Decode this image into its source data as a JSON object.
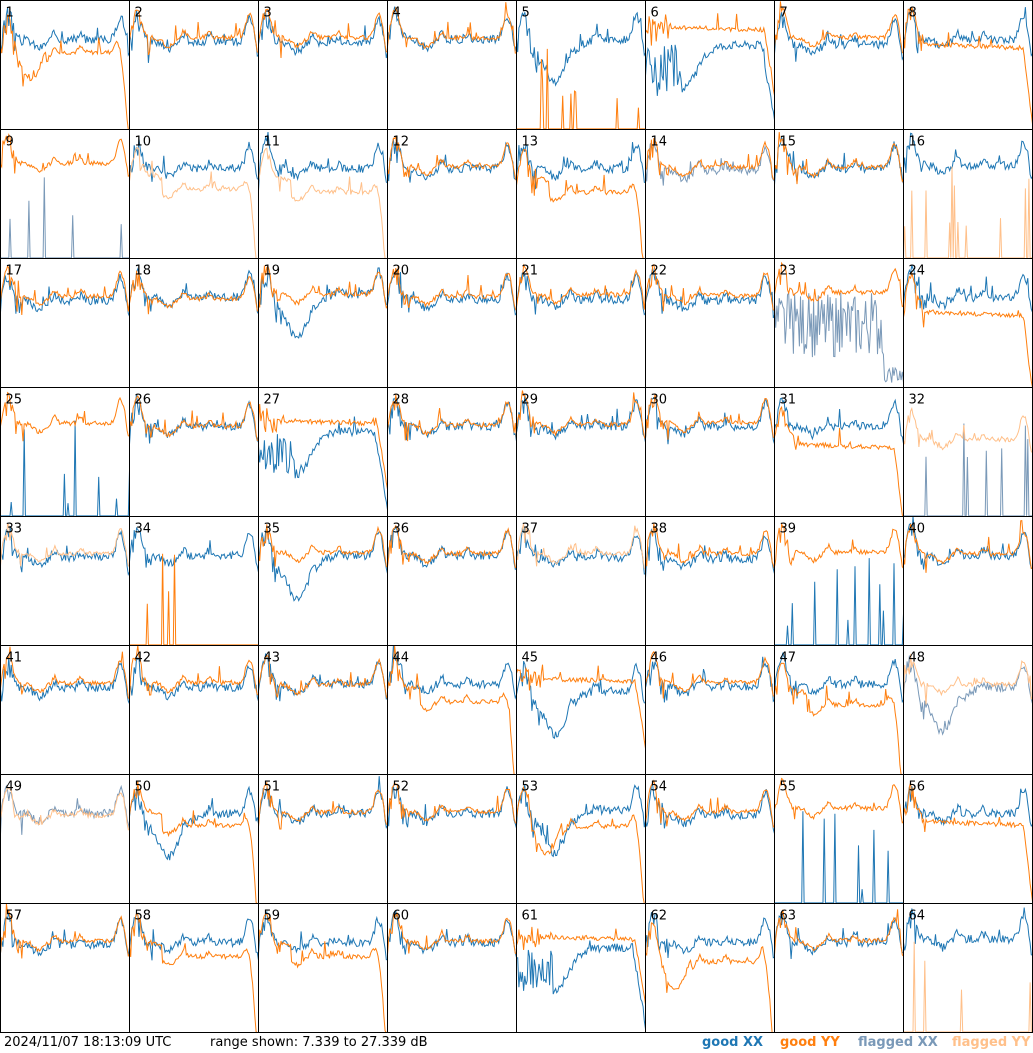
{
  "footer": {
    "timestamp": "2024/11/07 18:13:09 UTC",
    "range_text": "range shown: 7.339 to 27.339 dB"
  },
  "colors": {
    "good_xx": "#1f77b4",
    "good_yy": "#ff7f0e",
    "flagged_xx": "#7a99b8",
    "flagged_yy": "#ffc08a"
  },
  "chart_data": {
    "type": "line",
    "layout": "8x8 small multiples",
    "ylim": [
      7.339,
      27.339
    ],
    "units": "dB",
    "legend": [
      {
        "label": "good XX",
        "color": "#1f77b4"
      },
      {
        "label": "good YY",
        "color": "#ff7f0e"
      },
      {
        "label": "flagged XX",
        "color": "#7a99b8"
      },
      {
        "label": "flagged YY",
        "color": "#ffc08a"
      }
    ],
    "panels": [
      {
        "id": "1",
        "xx": {
          "s": "good",
          "p": "normal",
          "o": 0
        },
        "yy": {
          "s": "good",
          "p": "dropsag",
          "o": 0
        }
      },
      {
        "id": "2",
        "xx": {
          "s": "good",
          "p": "normal",
          "o": -0.3
        },
        "yy": {
          "s": "good",
          "p": "normal",
          "o": 0.3
        }
      },
      {
        "id": "3",
        "xx": {
          "s": "good",
          "p": "normal",
          "o": -0.5
        },
        "yy": {
          "s": "good",
          "p": "normal",
          "o": 0.3
        }
      },
      {
        "id": "4",
        "xx": {
          "s": "good",
          "p": "normal",
          "o": 0
        },
        "yy": {
          "s": "good",
          "p": "normal",
          "o": 0.2
        }
      },
      {
        "id": "5",
        "xx": {
          "s": "good",
          "p": "sag",
          "o": 0
        },
        "yy": {
          "s": "good",
          "p": "spikes",
          "o": 0
        }
      },
      {
        "id": "6",
        "xx": {
          "s": "good",
          "p": "dip",
          "o": 0
        },
        "yy": {
          "s": "good",
          "p": "flat",
          "o": 1
        }
      },
      {
        "id": "7",
        "xx": {
          "s": "good",
          "p": "normal",
          "o": -0.8
        },
        "yy": {
          "s": "good",
          "p": "normal",
          "o": 0.3
        }
      },
      {
        "id": "8",
        "xx": {
          "s": "good",
          "p": "normal",
          "o": 0
        },
        "yy": {
          "s": "good",
          "p": "flatdrop",
          "o": 0.5
        }
      },
      {
        "id": "9",
        "xx": {
          "s": "flagged",
          "p": "spikes",
          "o": 0
        },
        "yy": {
          "s": "good",
          "p": "normal",
          "o": 0.8
        }
      },
      {
        "id": "10",
        "xx": {
          "s": "good",
          "p": "normal",
          "o": 0
        },
        "yy": {
          "s": "flagged",
          "p": "drop",
          "o": -1
        }
      },
      {
        "id": "11",
        "xx": {
          "s": "good",
          "p": "normal",
          "o": 0
        },
        "yy": {
          "s": "flagged",
          "p": "drop",
          "o": -1.5
        }
      },
      {
        "id": "12",
        "xx": {
          "s": "good",
          "p": "normal",
          "o": 0
        },
        "yy": {
          "s": "good",
          "p": "normal",
          "o": 0.3
        }
      },
      {
        "id": "13",
        "xx": {
          "s": "good",
          "p": "normal",
          "o": 0
        },
        "yy": {
          "s": "good",
          "p": "drop",
          "o": -1.5
        }
      },
      {
        "id": "14",
        "xx": {
          "s": "flagged",
          "p": "normal",
          "o": -0.3
        },
        "yy": {
          "s": "good",
          "p": "normal",
          "o": 0.2
        }
      },
      {
        "id": "15",
        "xx": {
          "s": "good",
          "p": "normal",
          "o": 0
        },
        "yy": {
          "s": "good",
          "p": "normal",
          "o": 0.2
        }
      },
      {
        "id": "16",
        "xx": {
          "s": "good",
          "p": "normal",
          "o": 0.5
        },
        "yy": {
          "s": "flagged",
          "p": "spikes",
          "o": 0
        }
      },
      {
        "id": "17",
        "xx": {
          "s": "good",
          "p": "normal",
          "o": -0.5
        },
        "yy": {
          "s": "good",
          "p": "normal",
          "o": 0.2
        }
      },
      {
        "id": "18",
        "xx": {
          "s": "good",
          "p": "normal",
          "o": 0
        },
        "yy": {
          "s": "good",
          "p": "normal",
          "o": -0.2
        }
      },
      {
        "id": "19",
        "xx": {
          "s": "good",
          "p": "sag",
          "o": 0.5
        },
        "yy": {
          "s": "good",
          "p": "normal",
          "o": 0.5
        }
      },
      {
        "id": "20",
        "xx": {
          "s": "good",
          "p": "normal",
          "o": -0.3
        },
        "yy": {
          "s": "good",
          "p": "normal",
          "o": 0.2
        }
      },
      {
        "id": "21",
        "xx": {
          "s": "good",
          "p": "normal",
          "o": -0.3
        },
        "yy": {
          "s": "good",
          "p": "normal",
          "o": 0.4
        }
      },
      {
        "id": "22",
        "xx": {
          "s": "good",
          "p": "normal",
          "o": -0.5
        },
        "yy": {
          "s": "good",
          "p": "normal",
          "o": 0.3
        }
      },
      {
        "id": "23",
        "xx": {
          "s": "flagged",
          "p": "noisy",
          "o": 0
        },
        "yy": {
          "s": "good",
          "p": "normal",
          "o": 0.8
        }
      },
      {
        "id": "24",
        "xx": {
          "s": "good",
          "p": "normal",
          "o": 0
        },
        "yy": {
          "s": "good",
          "p": "flatdrop",
          "o": -1
        }
      },
      {
        "id": "25",
        "xx": {
          "s": "good",
          "p": "spikes",
          "o": 0
        },
        "yy": {
          "s": "good",
          "p": "normal",
          "o": 0.5
        }
      },
      {
        "id": "26",
        "xx": {
          "s": "good",
          "p": "normal",
          "o": 0
        },
        "yy": {
          "s": "good",
          "p": "normal",
          "o": 0
        }
      },
      {
        "id": "27",
        "xx": {
          "s": "good",
          "p": "dip",
          "o": 0
        },
        "yy": {
          "s": "good",
          "p": "flat",
          "o": 0
        }
      },
      {
        "id": "28",
        "xx": {
          "s": "good",
          "p": "normal",
          "o": 0
        },
        "yy": {
          "s": "good",
          "p": "normal",
          "o": 0.2
        }
      },
      {
        "id": "29",
        "xx": {
          "s": "good",
          "p": "normal",
          "o": 0
        },
        "yy": {
          "s": "good",
          "p": "normal",
          "o": 0.3
        }
      },
      {
        "id": "30",
        "xx": {
          "s": "good",
          "p": "normal",
          "o": 0
        },
        "yy": {
          "s": "good",
          "p": "normal",
          "o": 0.6
        }
      },
      {
        "id": "31",
        "xx": {
          "s": "good",
          "p": "normal",
          "o": 0
        },
        "yy": {
          "s": "good",
          "p": "flatdrop",
          "o": -1.5
        }
      },
      {
        "id": "32",
        "xx": {
          "s": "flagged",
          "p": "spikes",
          "o": 0
        },
        "yy": {
          "s": "flagged",
          "p": "normal",
          "o": -2
        }
      },
      {
        "id": "33",
        "xx": {
          "s": "good",
          "p": "normal",
          "o": -0.3
        },
        "yy": {
          "s": "flagged",
          "p": "normal",
          "o": 0.3
        }
      },
      {
        "id": "34",
        "xx": {
          "s": "good",
          "p": "normal",
          "o": 0
        },
        "yy": {
          "s": "good",
          "p": "spikes",
          "o": 0
        }
      },
      {
        "id": "35",
        "xx": {
          "s": "good",
          "p": "sag",
          "o": 0
        },
        "yy": {
          "s": "good",
          "p": "normal",
          "o": 0.5
        }
      },
      {
        "id": "36",
        "xx": {
          "s": "good",
          "p": "normal",
          "o": 0
        },
        "yy": {
          "s": "good",
          "p": "normal",
          "o": 0.3
        }
      },
      {
        "id": "37",
        "xx": {
          "s": "good",
          "p": "normal",
          "o": -0.3
        },
        "yy": {
          "s": "flagged",
          "p": "normal",
          "o": 0.3
        }
      },
      {
        "id": "38",
        "xx": {
          "s": "good",
          "p": "normal",
          "o": -0.5
        },
        "yy": {
          "s": "good",
          "p": "normal",
          "o": 0.3
        }
      },
      {
        "id": "39",
        "xx": {
          "s": "good",
          "p": "spikes",
          "o": 0
        },
        "yy": {
          "s": "good",
          "p": "normal",
          "o": 0.5
        }
      },
      {
        "id": "40",
        "xx": {
          "s": "good",
          "p": "normal",
          "o": 0
        },
        "yy": {
          "s": "good",
          "p": "normal",
          "o": 0.2
        }
      },
      {
        "id": "41",
        "xx": {
          "s": "good",
          "p": "normal",
          "o": -0.5
        },
        "yy": {
          "s": "good",
          "p": "normal",
          "o": 0.2
        }
      },
      {
        "id": "42",
        "xx": {
          "s": "good",
          "p": "normal",
          "o": -0.5
        },
        "yy": {
          "s": "good",
          "p": "normal",
          "o": 0.3
        }
      },
      {
        "id": "43",
        "xx": {
          "s": "good",
          "p": "normal",
          "o": 0
        },
        "yy": {
          "s": "good",
          "p": "normal",
          "o": 0
        }
      },
      {
        "id": "44",
        "xx": {
          "s": "good",
          "p": "normal",
          "o": 0
        },
        "yy": {
          "s": "good",
          "p": "drop",
          "o": -0.5
        }
      },
      {
        "id": "45",
        "xx": {
          "s": "good",
          "p": "sag",
          "o": -1
        },
        "yy": {
          "s": "good",
          "p": "flat",
          "o": 0
        }
      },
      {
        "id": "46",
        "xx": {
          "s": "good",
          "p": "normal",
          "o": -0.3
        },
        "yy": {
          "s": "good",
          "p": "normal",
          "o": 0.3
        }
      },
      {
        "id": "47",
        "xx": {
          "s": "good",
          "p": "normal",
          "o": 0
        },
        "yy": {
          "s": "good",
          "p": "drop",
          "o": -1
        }
      },
      {
        "id": "48",
        "xx": {
          "s": "flagged",
          "p": "sag",
          "o": -0.5
        },
        "yy": {
          "s": "flagged",
          "p": "normal",
          "o": 0
        }
      },
      {
        "id": "49",
        "xx": {
          "s": "flagged",
          "p": "normal",
          "o": 0
        },
        "yy": {
          "s": "flagged",
          "p": "normal",
          "o": -0.3
        }
      },
      {
        "id": "50",
        "xx": {
          "s": "good",
          "p": "sag",
          "o": 0
        },
        "yy": {
          "s": "good",
          "p": "drop",
          "o": 0.3
        }
      },
      {
        "id": "51",
        "xx": {
          "s": "good",
          "p": "normal",
          "o": 0
        },
        "yy": {
          "s": "good",
          "p": "normal",
          "o": 0.2
        }
      },
      {
        "id": "52",
        "xx": {
          "s": "good",
          "p": "normal",
          "o": 0
        },
        "yy": {
          "s": "good",
          "p": "normal",
          "o": 0.3
        }
      },
      {
        "id": "53",
        "xx": {
          "s": "good",
          "p": "sag",
          "o": 0.5
        },
        "yy": {
          "s": "good",
          "p": "dropsag",
          "o": 0
        }
      },
      {
        "id": "54",
        "xx": {
          "s": "good",
          "p": "normal",
          "o": -0.3
        },
        "yy": {
          "s": "good",
          "p": "normal",
          "o": 0.3
        }
      },
      {
        "id": "55",
        "xx": {
          "s": "good",
          "p": "spikes",
          "o": 0
        },
        "yy": {
          "s": "good",
          "p": "normal",
          "o": 0.8
        }
      },
      {
        "id": "56",
        "xx": {
          "s": "good",
          "p": "normal",
          "o": 0
        },
        "yy": {
          "s": "good",
          "p": "flatdrop",
          "o": 0
        }
      },
      {
        "id": "57",
        "xx": {
          "s": "good",
          "p": "normal",
          "o": -0.3
        },
        "yy": {
          "s": "good",
          "p": "normal",
          "o": 0.2
        }
      },
      {
        "id": "58",
        "xx": {
          "s": "good",
          "p": "normal",
          "o": 0
        },
        "yy": {
          "s": "good",
          "p": "drop",
          "o": 0
        }
      },
      {
        "id": "59",
        "xx": {
          "s": "good",
          "p": "normal",
          "o": 0
        },
        "yy": {
          "s": "good",
          "p": "drop",
          "o": 0
        }
      },
      {
        "id": "60",
        "xx": {
          "s": "good",
          "p": "normal",
          "o": 0
        },
        "yy": {
          "s": "good",
          "p": "normal",
          "o": 0.2
        }
      },
      {
        "id": "61",
        "xx": {
          "s": "good",
          "p": "dip",
          "o": 0
        },
        "yy": {
          "s": "good",
          "p": "flat",
          "o": 0
        }
      },
      {
        "id": "62",
        "xx": {
          "s": "good",
          "p": "normal",
          "o": 0
        },
        "yy": {
          "s": "good",
          "p": "dropsag",
          "o": -1
        }
      },
      {
        "id": "63",
        "xx": {
          "s": "good",
          "p": "normal",
          "o": 0
        },
        "yy": {
          "s": "good",
          "p": "normal",
          "o": 0.3
        }
      },
      {
        "id": "64",
        "xx": {
          "s": "good",
          "p": "normal",
          "o": 0.5
        },
        "yy": {
          "s": "flagged",
          "p": "spikes",
          "o": 0
        }
      }
    ]
  }
}
